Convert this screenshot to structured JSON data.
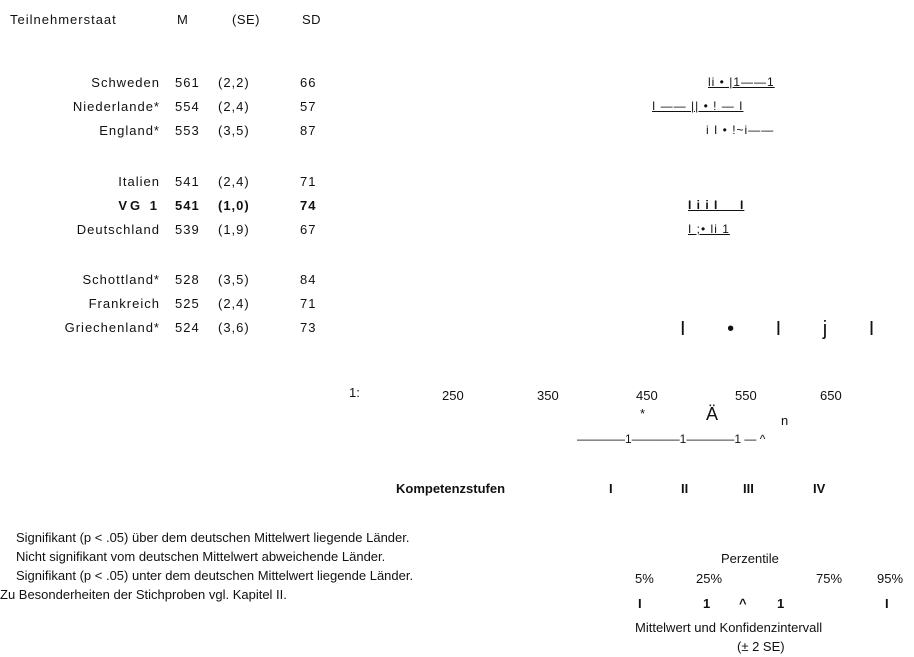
{
  "header": {
    "country": "Teilnehmerstaat",
    "m": "M",
    "se": "(SE)",
    "sd": "SD"
  },
  "rows": [
    {
      "country": "Schweden",
      "m": "561",
      "se": "(2,2)",
      "sd": "66",
      "bold": false,
      "marks": "li • |1——1"
    },
    {
      "country": "Niederlande*",
      "m": "554",
      "se": "(2,4)",
      "sd": "57",
      "bold": false,
      "marks": "I —— || • ! — I"
    },
    {
      "country": "England*",
      "m": "553",
      "se": "(3,5)",
      "sd": "87",
      "bold": false,
      "marks": "i I • !~i——"
    },
    {
      "country": "Italien",
      "m": "541",
      "se": "(2,4)",
      "sd": "71",
      "bold": false,
      "marks": ""
    },
    {
      "country": "VG 1",
      "m": "541",
      "se": "(1,0)",
      "sd": "74",
      "bold": true,
      "marks": "I i i I     I"
    },
    {
      "country": "Deutschland",
      "m": "539",
      "se": "(1,9)",
      "sd": "67",
      "bold": false,
      "marks": "I ;• li 1"
    },
    {
      "country": "Schottland*",
      "m": "528",
      "se": "(3,5)",
      "sd": "84",
      "bold": false,
      "marks": ""
    },
    {
      "country": "Frankreich",
      "m": "525",
      "se": "(2,4)",
      "sd": "71",
      "bold": false,
      "marks": ""
    },
    {
      "country": "Griechenland*",
      "m": "524",
      "se": "(3,6)",
      "sd": "73",
      "bold": false,
      "marks": "I • I j I"
    }
  ],
  "scale": {
    "prefix": "1:",
    "ticks": [
      "250",
      "350",
      "450",
      "550",
      "650"
    ],
    "sym_star": "*",
    "sym_a": "Ä",
    "sym_n": "n",
    "axis_line": "————1————1————1 — ^"
  },
  "levels": {
    "label": "Kompetenzstufen",
    "items": [
      "I",
      "II",
      "III",
      "IV"
    ]
  },
  "notes": [
    "Signifikant (p < .05) über dem deutschen Mittelwert liegende Länder.",
    "Nicht signifikant vom deutschen Mittelwert abweichende Länder.",
    "Signifikant (p < .05) unter dem deutschen Mittelwert liegende Länder.",
    "Zu Besonderheiten der Stichproben vgl. Kapitel II."
  ],
  "legend": {
    "title": "Perzentile",
    "pcts": [
      "5%",
      "25%",
      "75%",
      "95%"
    ],
    "marks": [
      "I",
      "1",
      "^",
      "1",
      "I"
    ],
    "caption1": "Mittelwert und Konfidenzintervall",
    "caption2": "(± 2 SE)"
  }
}
